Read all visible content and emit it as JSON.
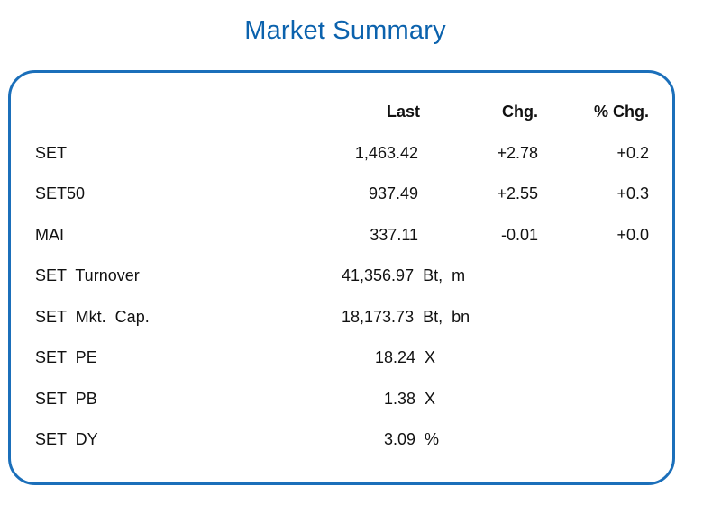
{
  "title": "Market Summary",
  "headers": {
    "last": "Last",
    "chg": "Chg.",
    "pct_chg": "% Chg."
  },
  "indices": [
    {
      "name": "SET",
      "last": "1,463.42",
      "chg": "+2.78",
      "pct": "+0.2"
    },
    {
      "name": "SET50",
      "last": "937.49",
      "chg": "+2.55",
      "pct": "+0.3"
    },
    {
      "name": "MAI",
      "last": "337.11",
      "chg": "-0.01",
      "pct": "+0.0"
    }
  ],
  "stats": [
    {
      "name": "SET  Turnover",
      "value": "41,356.97  Bt,  m"
    },
    {
      "name": "SET  Mkt.  Cap.",
      "value": "18,173.73  Bt,  bn"
    },
    {
      "name": "SET  PE",
      "value": "18.24  X"
    },
    {
      "name": "SET  PB",
      "value": "1.38  X"
    },
    {
      "name": "SET  DY",
      "value": "3.09  %"
    }
  ],
  "colors": {
    "title": "#0b62ad",
    "border": "#1b6fba"
  }
}
